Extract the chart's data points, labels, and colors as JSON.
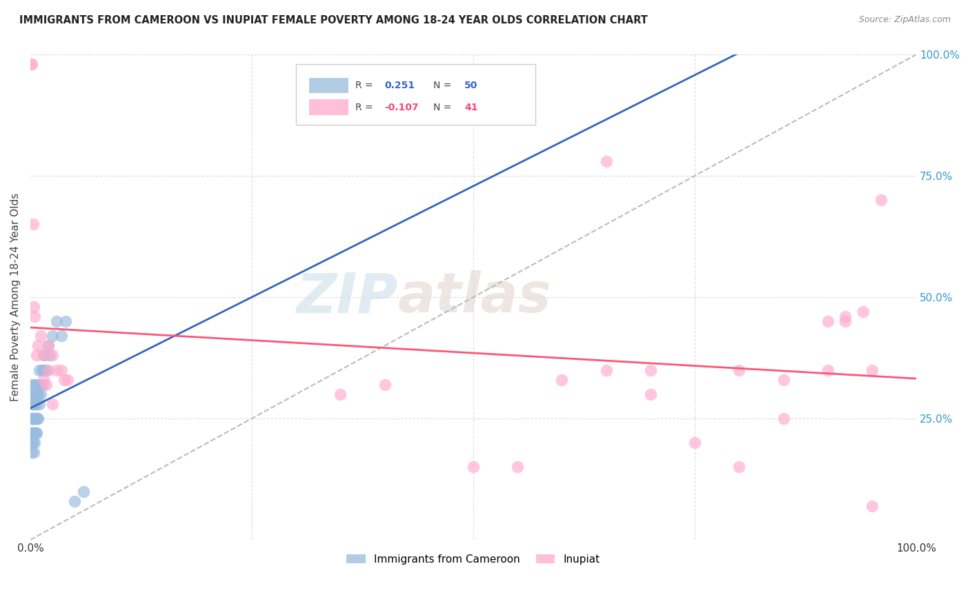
{
  "title": "IMMIGRANTS FROM CAMEROON VS INUPIAT FEMALE POVERTY AMONG 18-24 YEAR OLDS CORRELATION CHART",
  "source": "Source: ZipAtlas.com",
  "ylabel": "Female Poverty Among 18-24 Year Olds",
  "r_blue": 0.251,
  "n_blue": 50,
  "r_pink": -0.107,
  "n_pink": 41,
  "blue_color": "#99BBDD",
  "pink_color": "#FFAACC",
  "blue_line_color": "#3366BB",
  "pink_line_color": "#FF5577",
  "watermark_zip": "ZIP",
  "watermark_atlas": "atlas",
  "blue_scatter_x": [
    0.001,
    0.001,
    0.001,
    0.001,
    0.002,
    0.002,
    0.002,
    0.002,
    0.002,
    0.003,
    0.003,
    0.003,
    0.003,
    0.003,
    0.004,
    0.004,
    0.004,
    0.004,
    0.005,
    0.005,
    0.005,
    0.005,
    0.005,
    0.006,
    0.006,
    0.006,
    0.007,
    0.007,
    0.007,
    0.008,
    0.008,
    0.009,
    0.009,
    0.01,
    0.01,
    0.011,
    0.012,
    0.013,
    0.014,
    0.015,
    0.016,
    0.018,
    0.02,
    0.022,
    0.025,
    0.03,
    0.035,
    0.04,
    0.05,
    0.06
  ],
  "blue_scatter_y": [
    0.2,
    0.22,
    0.25,
    0.28,
    0.18,
    0.22,
    0.25,
    0.3,
    0.32,
    0.2,
    0.22,
    0.25,
    0.28,
    0.3,
    0.18,
    0.22,
    0.25,
    0.28,
    0.2,
    0.22,
    0.25,
    0.28,
    0.32,
    0.22,
    0.25,
    0.3,
    0.22,
    0.28,
    0.32,
    0.25,
    0.3,
    0.25,
    0.3,
    0.28,
    0.35,
    0.32,
    0.3,
    0.35,
    0.32,
    0.35,
    0.38,
    0.35,
    0.4,
    0.38,
    0.42,
    0.45,
    0.42,
    0.45,
    0.08,
    0.1
  ],
  "pink_scatter_x": [
    0.001,
    0.002,
    0.003,
    0.004,
    0.005,
    0.007,
    0.009,
    0.012,
    0.015,
    0.02,
    0.025,
    0.03,
    0.018,
    0.035,
    0.038,
    0.042,
    0.015,
    0.02,
    0.025,
    0.35,
    0.4,
    0.5,
    0.55,
    0.6,
    0.65,
    0.7,
    0.75,
    0.8,
    0.85,
    0.9,
    0.92,
    0.94,
    0.95,
    0.96,
    0.65,
    0.7,
    0.8,
    0.85,
    0.9,
    0.92,
    0.95
  ],
  "pink_scatter_y": [
    0.98,
    0.98,
    0.65,
    0.48,
    0.46,
    0.38,
    0.4,
    0.42,
    0.38,
    0.4,
    0.38,
    0.35,
    0.32,
    0.35,
    0.33,
    0.33,
    0.33,
    0.35,
    0.28,
    0.3,
    0.32,
    0.15,
    0.15,
    0.33,
    0.35,
    0.35,
    0.2,
    0.35,
    0.25,
    0.35,
    0.46,
    0.47,
    0.35,
    0.7,
    0.78,
    0.3,
    0.15,
    0.33,
    0.45,
    0.45,
    0.07
  ]
}
